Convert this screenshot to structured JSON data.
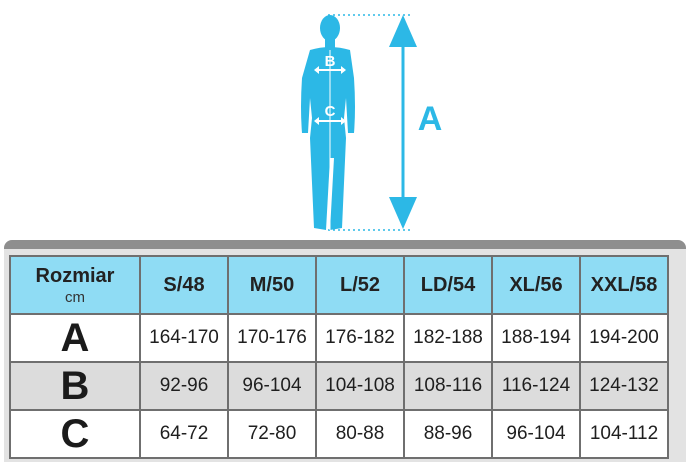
{
  "figure": {
    "label_height": "A",
    "label_chest": "B",
    "label_waist": "C",
    "color": "#2cb8e6"
  },
  "table": {
    "header_label": "Rozmiar",
    "header_unit": "cm",
    "sizes": [
      "S/48",
      "M/50",
      "L/52",
      "LD/54",
      "XL/56",
      "XXL/58"
    ],
    "rows": [
      {
        "label": "A",
        "values": [
          "164-170",
          "170-176",
          "176-182",
          "182-188",
          "188-194",
          "194-200"
        ]
      },
      {
        "label": "B",
        "values": [
          "92-96",
          "96-104",
          "104-108",
          "108-116",
          "116-124",
          "124-132"
        ]
      },
      {
        "label": "C",
        "values": [
          "64-72",
          "72-80",
          "80-88",
          "88-96",
          "96-104",
          "104-112"
        ]
      }
    ],
    "header_color": "#8fdcf4",
    "stripe_color": "#dcdcdc"
  }
}
